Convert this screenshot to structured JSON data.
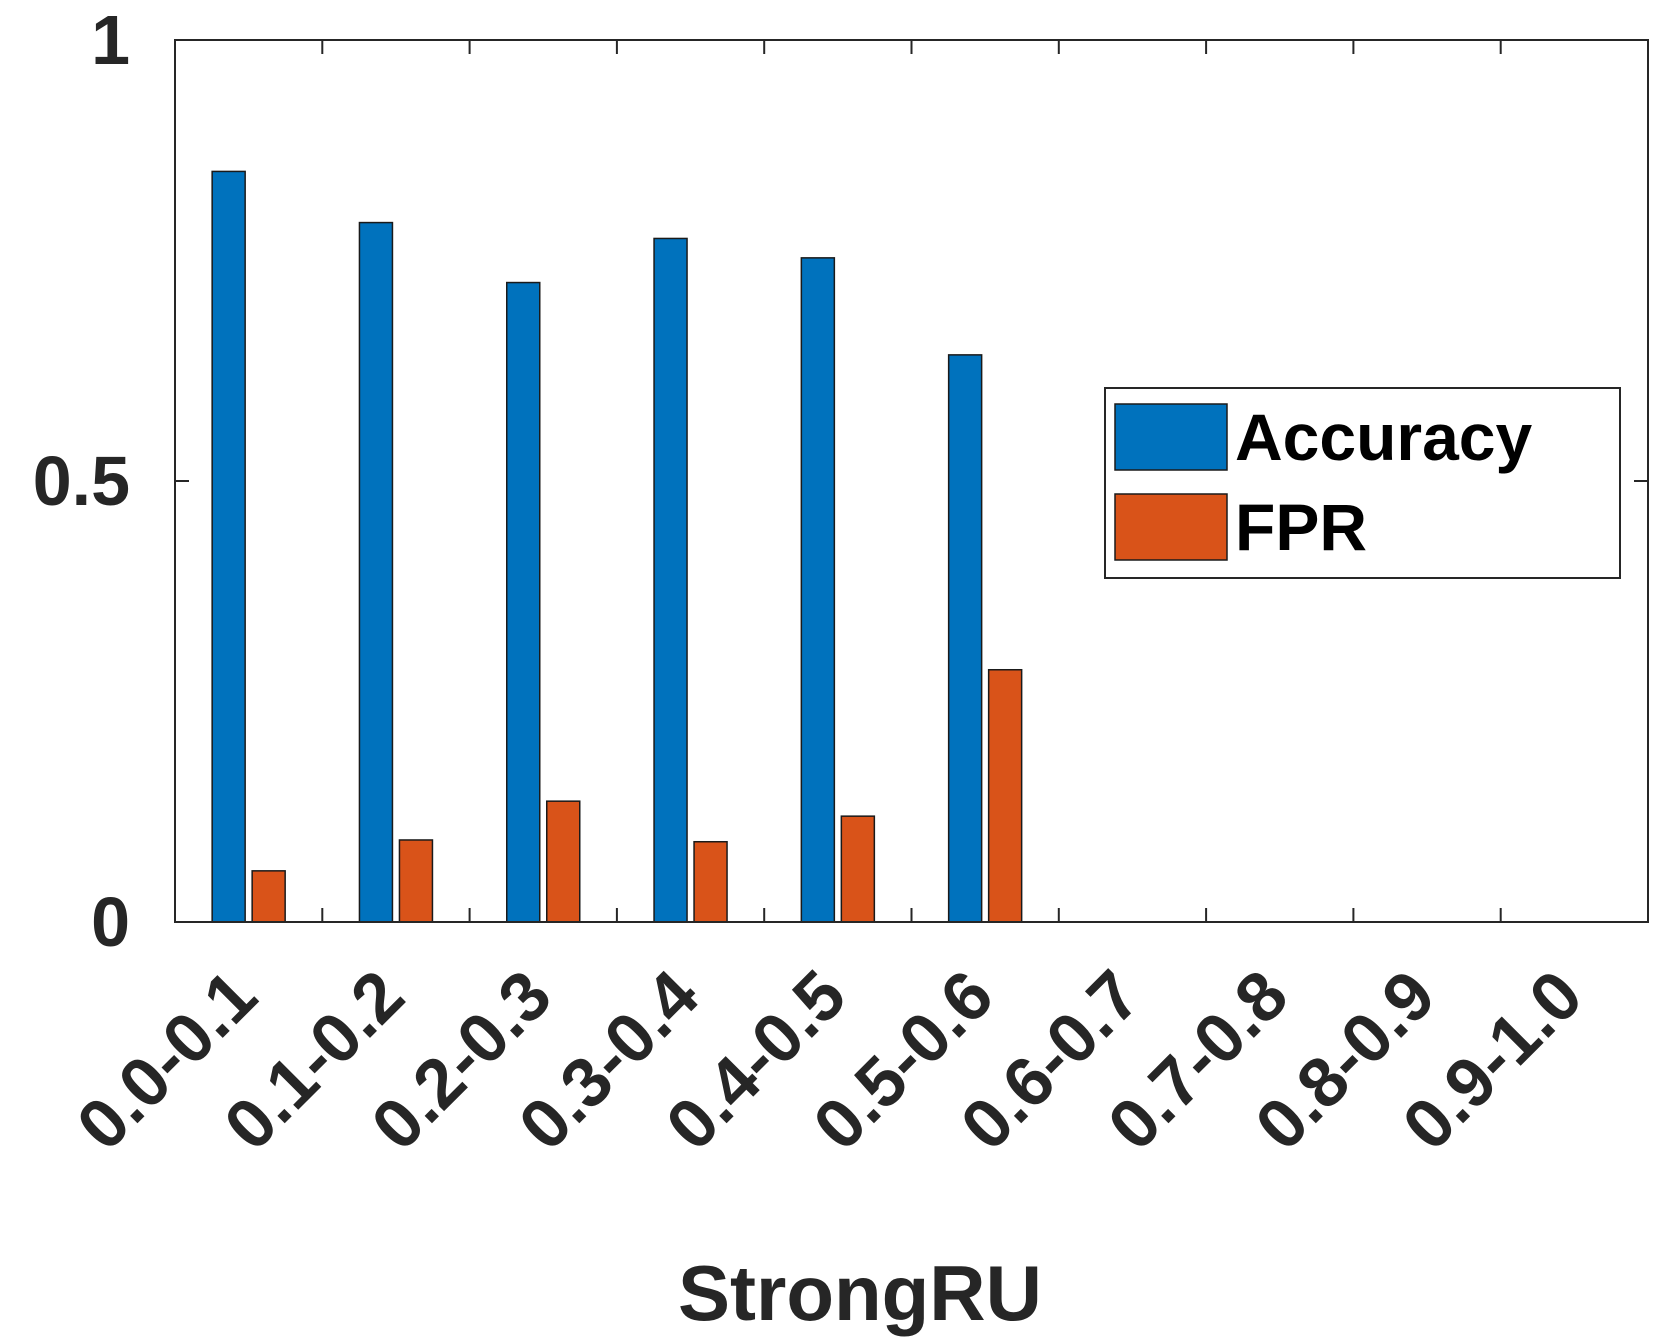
{
  "chart_data": {
    "type": "bar",
    "xlabel": "StrongRU",
    "ylabel": "",
    "ylim": [
      0,
      1
    ],
    "yticks": [
      {
        "value": 0,
        "label": "0"
      },
      {
        "value": 0.5,
        "label": "0.5"
      },
      {
        "value": 1,
        "label": "1"
      }
    ],
    "categories": [
      "0.0-0.1",
      "0.1-0.2",
      "0.2-0.3",
      "0.3-0.4",
      "0.4-0.5",
      "0.5-0.6",
      "0.6-0.7",
      "0.7-0.8",
      "0.8-0.9",
      "0.9-1.0"
    ],
    "series": [
      {
        "name": "Accuracy",
        "color": "#0072bd",
        "values": [
          0.851,
          0.793,
          0.725,
          0.775,
          0.753,
          0.643,
          0,
          0,
          0,
          0
        ]
      },
      {
        "name": "FPR",
        "color": "#d95319",
        "values": [
          0.058,
          0.093,
          0.137,
          0.091,
          0.12,
          0.286,
          0,
          0,
          0,
          0
        ]
      }
    ],
    "legend": "right",
    "grid": false
  }
}
